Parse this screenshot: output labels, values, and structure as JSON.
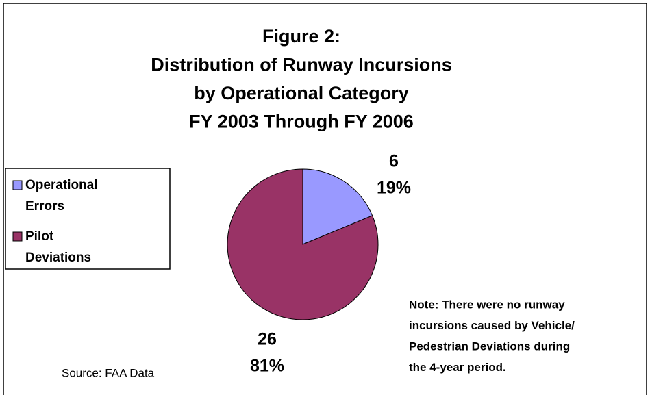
{
  "chart_data": {
    "type": "pie",
    "title": [
      "Figure 2:",
      "Distribution of Runway Incursions",
      "by Operational Category",
      "FY 2003 Through FY 2006"
    ],
    "categories": [
      "Operational Errors",
      "Pilot Deviations"
    ],
    "legend_lines": [
      [
        "Operational",
        "Errors"
      ],
      [
        "Pilot",
        "Deviations"
      ]
    ],
    "values": [
      6,
      26
    ],
    "percent_labels": [
      "19%",
      "81%"
    ],
    "colors": [
      "#9999ff",
      "#993366"
    ],
    "legend": "left",
    "note": [
      "Note:  There were no runway",
      "incursions caused by Vehicle/",
      "Pedestrian Deviations during",
      "the 4-year period."
    ],
    "source": "Source:  FAA Data"
  }
}
